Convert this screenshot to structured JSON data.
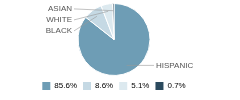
{
  "chart_data": {
    "type": "pie",
    "categories": [
      "HISPANIC",
      "BLACK",
      "WHITE",
      "ASIAN"
    ],
    "values": [
      85.6,
      8.6,
      5.1,
      0.7
    ],
    "value_labels": [
      "85.6%",
      "8.6%",
      "5.1%",
      "0.7%"
    ],
    "colors": [
      "#6e9db5",
      "#c5d9e4",
      "#dce9ef",
      "#2b4a5e"
    ],
    "legend": "bottom"
  }
}
